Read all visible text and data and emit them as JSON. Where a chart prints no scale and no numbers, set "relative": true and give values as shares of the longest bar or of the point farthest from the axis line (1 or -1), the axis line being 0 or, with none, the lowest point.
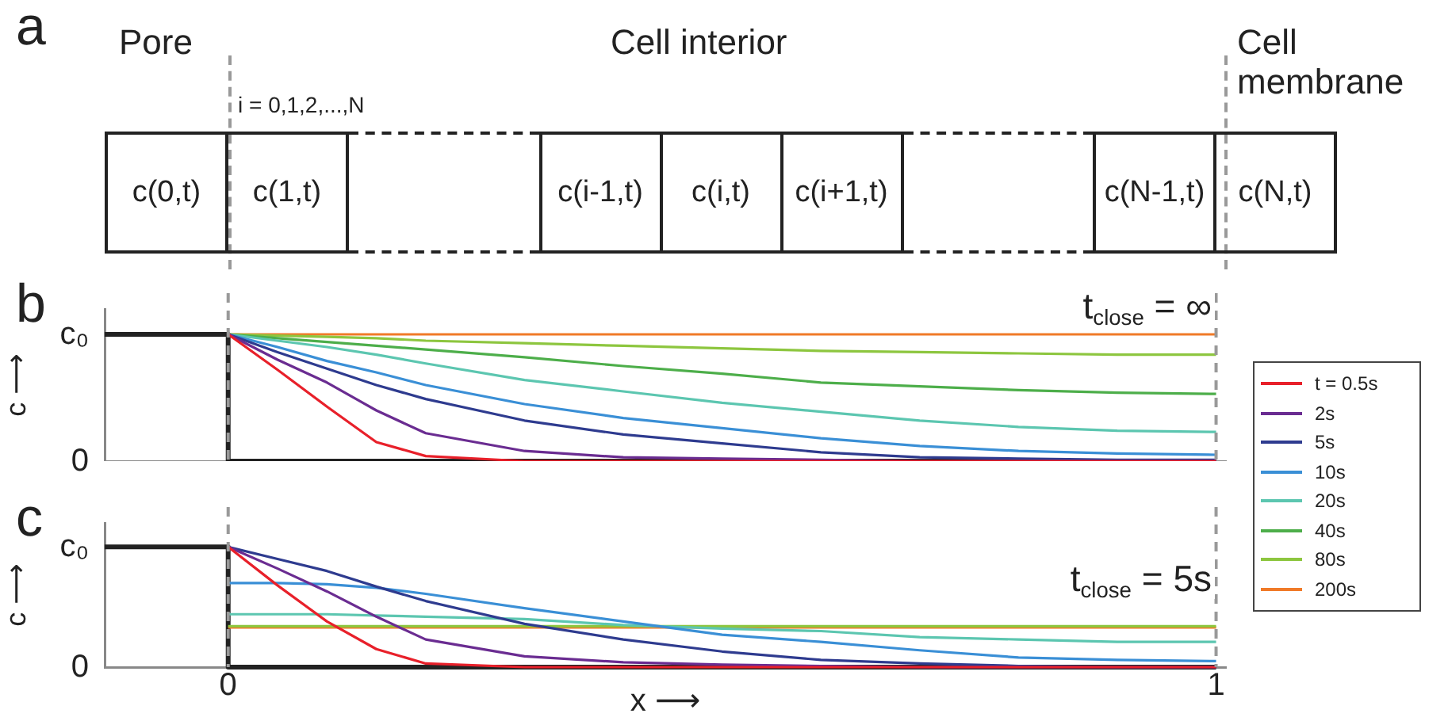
{
  "chart_data": [
    {
      "type": "other",
      "title": "a",
      "categories": [
        "c(0,t)",
        "c(1,t)",
        null,
        "c(i-1,t)",
        "c(i,t)",
        "c(i+1,t)",
        null,
        "c(N-1,t)",
        "c(N,t)"
      ],
      "annotations": [
        "Pore",
        "Cell interior",
        "Cell membrane",
        "i = 0,1,2,...,N"
      ]
    },
    {
      "type": "line",
      "title": "b",
      "ylabel": "c ⟶",
      "xlim": [
        -0.125,
        1.01
      ],
      "relative": true,
      "tick_labels": false,
      "legend": "right",
      "annotations": [
        "t$_{close}$ = ∞",
        "c₀",
        "0"
      ],
      "ref_lines": [
        {
          "axis": "x",
          "value": 0,
          "color": "#999999",
          "line_style": "dashed"
        },
        {
          "axis": "x",
          "value": 1,
          "color": "#999999",
          "line_style": "dashed"
        }
      ],
      "x": [
        0,
        0.05,
        0.1,
        0.15,
        0.2,
        0.3,
        0.4,
        0.5,
        0.6,
        0.7,
        0.8,
        0.9,
        1
      ],
      "series": [
        {
          "name": "t = 0.5s",
          "color": "#e8202a",
          "values": [
            1,
            0.72,
            0.43,
            0.15,
            0.04,
            0,
            0,
            0,
            0,
            0,
            0,
            0,
            0
          ]
        },
        {
          "name": "2s",
          "color": "#6a2c91",
          "values": [
            1,
            0.8,
            0.62,
            0.4,
            0.22,
            0.08,
            0.03,
            0.02,
            0.01,
            0,
            0,
            0,
            0
          ]
        },
        {
          "name": "5s",
          "color": "#2e3b8f",
          "values": [
            1,
            0.86,
            0.73,
            0.6,
            0.49,
            0.32,
            0.21,
            0.14,
            0.07,
            0.03,
            0.02,
            0.01,
            0.01
          ]
        },
        {
          "name": "10s",
          "color": "#3a8fd6",
          "values": [
            1,
            0.9,
            0.79,
            0.7,
            0.6,
            0.45,
            0.34,
            0.26,
            0.18,
            0.12,
            0.08,
            0.06,
            0.05
          ]
        },
        {
          "name": "20s",
          "color": "#5cc6b0",
          "values": [
            1,
            0.95,
            0.9,
            0.84,
            0.77,
            0.64,
            0.55,
            0.46,
            0.39,
            0.32,
            0.27,
            0.24,
            0.23
          ]
        },
        {
          "name": "40s",
          "color": "#4dae4a",
          "values": [
            1,
            0.97,
            0.94,
            0.91,
            0.88,
            0.82,
            0.75,
            0.69,
            0.62,
            0.59,
            0.56,
            0.54,
            0.53
          ]
        },
        {
          "name": "80s",
          "color": "#8dc63f",
          "values": [
            1,
            0.99,
            0.98,
            0.97,
            0.95,
            0.93,
            0.91,
            0.89,
            0.87,
            0.86,
            0.85,
            0.84,
            0.84
          ]
        },
        {
          "name": "200s",
          "color": "#f07a28",
          "values": [
            1,
            1,
            1,
            1,
            1,
            1,
            1,
            1,
            1,
            1,
            1,
            1,
            1
          ]
        },
        {
          "color": "#222222",
          "x": [
            -0.125,
            0,
            0,
            1
          ],
          "values": [
            1,
            1,
            0,
            0
          ]
        }
      ]
    },
    {
      "type": "line",
      "title": "c",
      "ylabel": "c ⟶",
      "xlabel": "x ⟶",
      "xlim": [
        -0.125,
        1.01
      ],
      "xticks": [
        0,
        1
      ],
      "relative": true,
      "tick_labels": "x",
      "annotations": [
        "t$_{close}$ = 5s",
        "c₀",
        "0"
      ],
      "ref_lines": [
        {
          "axis": "x",
          "value": 0,
          "color": "#999999",
          "line_style": "dashed"
        },
        {
          "axis": "x",
          "value": 1,
          "color": "#999999",
          "line_style": "dashed"
        }
      ],
      "x": [
        0,
        0.05,
        0.1,
        0.15,
        0.2,
        0.3,
        0.4,
        0.5,
        0.6,
        0.7,
        0.8,
        0.9,
        1
      ],
      "series": [
        {
          "color": "#e8202a",
          "values": [
            1,
            0.68,
            0.38,
            0.15,
            0.03,
            0,
            0,
            0,
            0,
            0,
            0,
            0,
            0
          ]
        },
        {
          "color": "#6a2c91",
          "values": [
            1,
            0.82,
            0.63,
            0.42,
            0.23,
            0.09,
            0.04,
            0.02,
            0.01,
            0,
            0,
            0,
            0
          ]
        },
        {
          "color": "#2e3b8f",
          "values": [
            1,
            0.9,
            0.8,
            0.67,
            0.55,
            0.36,
            0.23,
            0.13,
            0.06,
            0.03,
            0.01,
            0,
            0
          ]
        },
        {
          "color": "#3a8fd6",
          "values": [
            0.7,
            0.7,
            0.69,
            0.66,
            0.61,
            0.49,
            0.38,
            0.27,
            0.21,
            0.14,
            0.08,
            0.06,
            0.05
          ]
        },
        {
          "color": "#5cc6b0",
          "values": [
            0.44,
            0.44,
            0.44,
            0.43,
            0.42,
            0.4,
            0.35,
            0.32,
            0.3,
            0.25,
            0.23,
            0.21,
            0.21
          ]
        },
        {
          "color": "#4dae4a",
          "values": [
            null,
            null,
            null,
            null,
            null,
            null,
            null,
            null,
            null,
            null,
            null,
            null,
            null
          ]
        },
        {
          "color": "#8dc63f",
          "values": [
            0.34,
            0.34,
            0.34,
            0.34,
            0.34,
            0.34,
            0.34,
            0.34,
            0.34,
            0.34,
            0.34,
            0.34,
            0.34
          ]
        },
        {
          "color": "#f07a28",
          "values": [
            0.33,
            0.33,
            0.33,
            0.33,
            0.33,
            0.33,
            0.33,
            0.33,
            0.33,
            0.33,
            0.33,
            0.33,
            0.33
          ]
        },
        {
          "color": "#222222",
          "x": [
            -0.125,
            0,
            0,
            1
          ],
          "values": [
            1,
            1,
            0,
            0
          ]
        }
      ]
    }
  ]
}
